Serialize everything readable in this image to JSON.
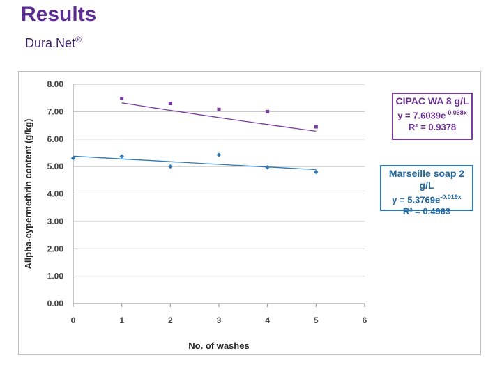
{
  "slide": {
    "title": "Results",
    "subtitle": "Dura.Net",
    "subtitle_mark": "®"
  },
  "chart_data": {
    "type": "scatter",
    "title": "",
    "xlabel": "No. of washes",
    "ylabel": "Allpha-cypermethrin content (g/kg)",
    "xlim": [
      0,
      6
    ],
    "ylim": [
      0,
      8
    ],
    "x_ticks": [
      "0",
      "1",
      "2",
      "3",
      "4",
      "5",
      "6"
    ],
    "y_ticks": [
      "0.00",
      "1.00",
      "2.00",
      "3.00",
      "4.00",
      "5.00",
      "6.00",
      "7.00",
      "8.00"
    ],
    "grid": true,
    "series": [
      {
        "name": "CIPAC WA 8 g/L",
        "color": "#7a3c9f",
        "marker": "square",
        "x": [
          1,
          2,
          3,
          4,
          5
        ],
        "y": [
          7.48,
          7.3,
          7.08,
          7.0,
          6.45
        ],
        "trendline": {
          "type": "exponential",
          "a": 7.6039,
          "b": -0.038,
          "x_range": [
            1,
            5
          ]
        },
        "equation_text": "y = 7.6039e",
        "equation_exp": "-0.038x",
        "r2_text": "R² = 0.9378"
      },
      {
        "name": "Marseille soap 2 g/L",
        "color": "#2f7ab8",
        "marker": "diamond",
        "x": [
          0,
          1,
          2,
          3,
          4,
          5
        ],
        "y": [
          5.3,
          5.37,
          5.0,
          5.42,
          4.97,
          4.8
        ],
        "trendline": {
          "type": "exponential",
          "a": 5.3769,
          "b": -0.019,
          "x_range": [
            0,
            5
          ]
        },
        "equation_text": "y = 5.3769e",
        "equation_exp": "-0.019x",
        "r2_text": "R² = 0.4963"
      }
    ]
  }
}
